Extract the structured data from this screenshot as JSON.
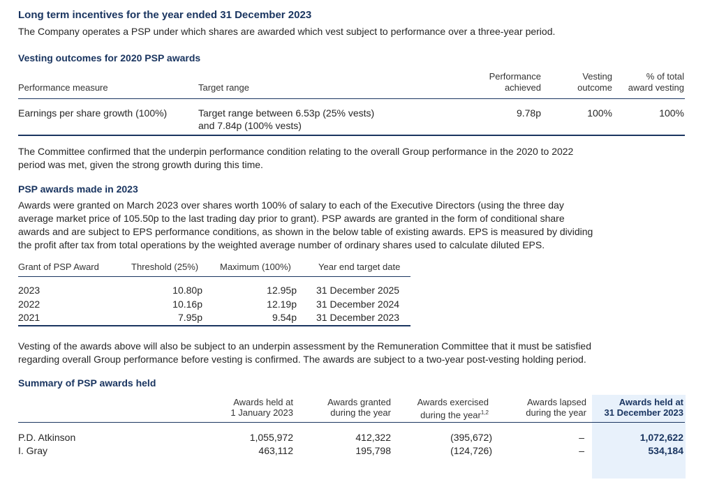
{
  "lti": {
    "title": "Long term incentives for the year ended 31 December 2023",
    "intro": "The Company operates a PSP under which shares are awarded which vest subject to performance over a three-year period."
  },
  "vesting": {
    "title": "Vesting outcomes for 2020 PSP awards",
    "headers": {
      "measure": "Performance measure",
      "range": "Target range",
      "achieved_1": "Performance",
      "achieved_2": "achieved",
      "outcome_1": "Vesting",
      "outcome_2": "outcome",
      "pct_1": "% of total",
      "pct_2": "award vesting"
    },
    "row": {
      "measure": "Earnings per share growth (100%)",
      "range_1": "Target range between 6.53p (25% vests)",
      "range_2": "and 7.84p (100% vests)",
      "achieved": "9.78p",
      "outcome": "100%",
      "pct": "100%"
    },
    "note_1": "The Committee confirmed that the underpin performance condition relating to the overall Group performance in the 2020 to 2022",
    "note_2": "period was met, given the strong growth during this time."
  },
  "psp2023": {
    "title": "PSP awards made in 2023",
    "para": [
      "Awards were granted on March 2023 over shares worth 100% of salary to each of the Executive Directors (using the three day",
      "average market price of 105.50p to the last trading day prior to grant). PSP awards are granted in the form of conditional share",
      "awards and are subject to EPS performance conditions, as shown in the below table of existing awards. EPS is measured by dividing",
      "the profit after tax from total operations by the weighted average number of ordinary shares used to calculate diluted EPS."
    ],
    "headers": {
      "grant": "Grant of PSP Award",
      "threshold": "Threshold (25%)",
      "maximum": "Maximum (100%)",
      "target": "Year end target date"
    },
    "rows": [
      {
        "grant": "2023",
        "threshold": "10.80p",
        "maximum": "12.95p",
        "target": "31 December 2025"
      },
      {
        "grant": "2022",
        "threshold": "10.16p",
        "maximum": "12.19p",
        "target": "31 December 2024"
      },
      {
        "grant": "2021",
        "threshold": "7.95p",
        "maximum": "9.54p",
        "target": "31 December 2023"
      }
    ],
    "note_1": "Vesting of the awards above will also be subject to an underpin assessment by the Remuneration Committee that it must be satisfied",
    "note_2": "regarding overall Group performance before vesting is confirmed. The awards are subject to a two-year post-vesting holding period."
  },
  "summary": {
    "title": "Summary of PSP awards held",
    "headers": {
      "held_1": "Awards held at",
      "held_2": "1 January 2023",
      "granted_1": "Awards granted",
      "granted_2": "during the year",
      "exercised_1": "Awards exercised",
      "exercised_2": "during the year",
      "exercised_sup": "1,2",
      "lapsed_1": "Awards lapsed",
      "lapsed_2": "during the year",
      "end_1": "Awards held at",
      "end_2": "31 December 2023"
    },
    "rows": [
      {
        "name": "P.D. Atkinson",
        "held": "1,055,972",
        "granted": "412,322",
        "exercised": "(395,672)",
        "lapsed": "–",
        "end": "1,072,622"
      },
      {
        "name": "I. Gray",
        "held": "463,112",
        "granted": "195,798",
        "exercised": "(124,726)",
        "lapsed": "–",
        "end": "534,184"
      }
    ]
  }
}
